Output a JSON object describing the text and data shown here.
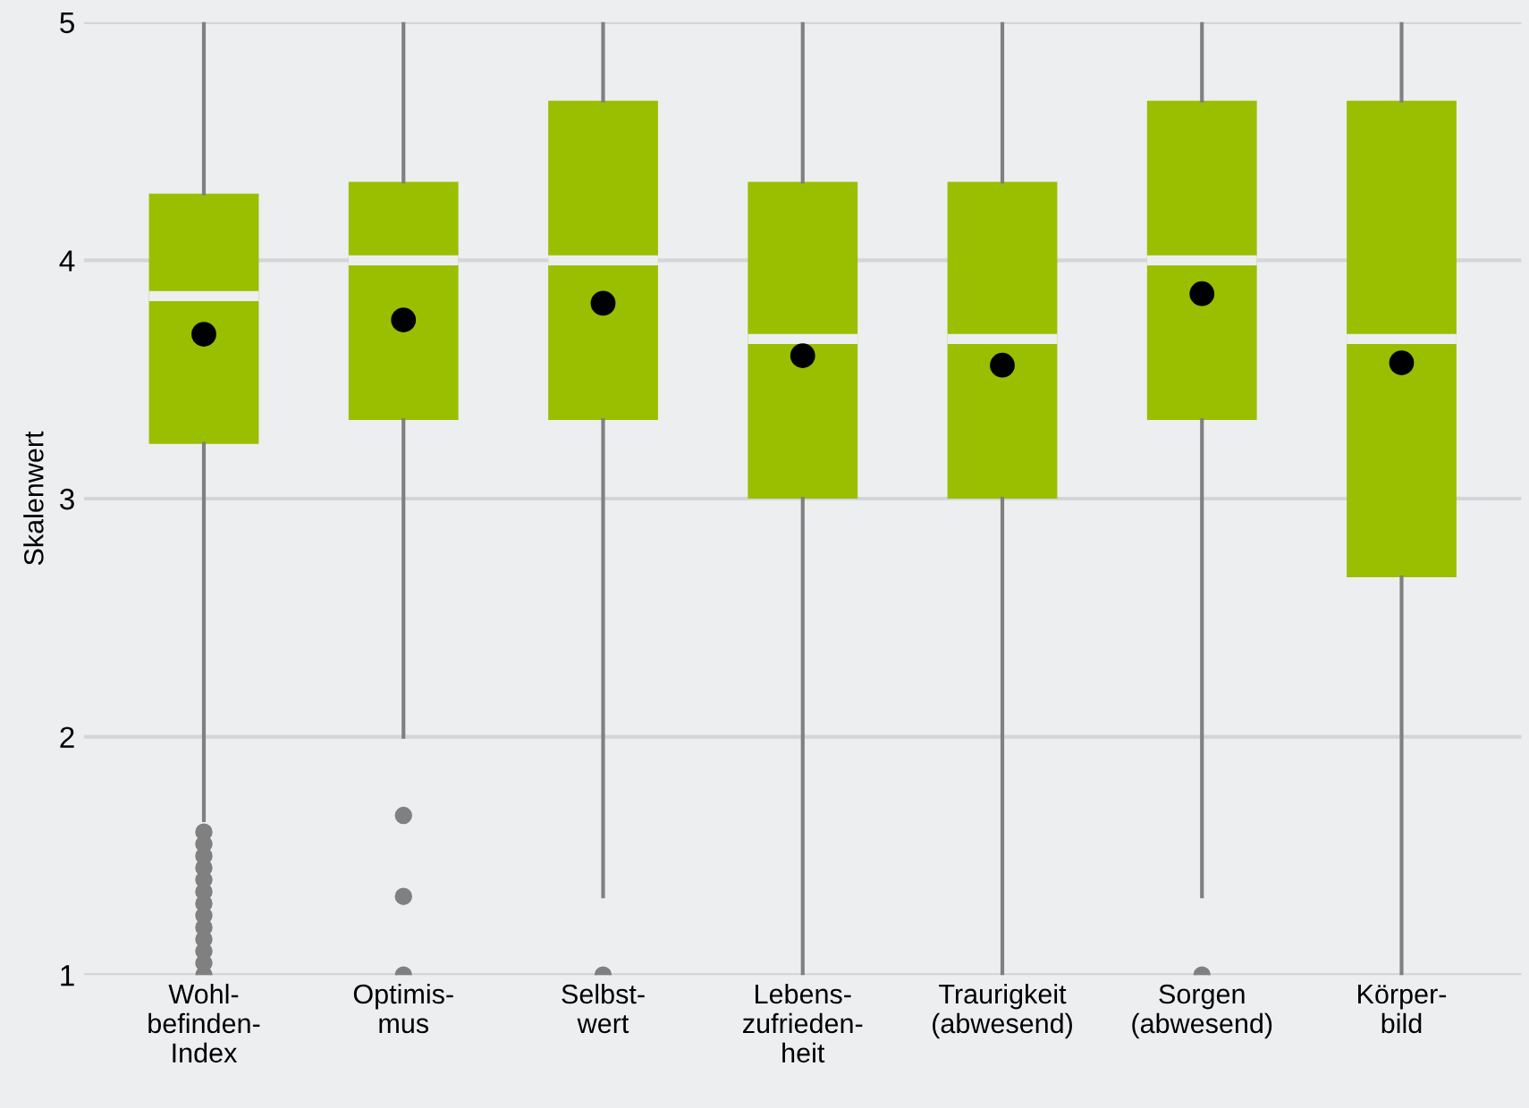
{
  "chart_data": {
    "type": "box",
    "ylabel": "Skalenwert",
    "categories": [
      "Wohl-\nbefinden-\nIndex",
      "Optimis-\nmus",
      "Selbst-\nwert",
      "Lebens-\nzufrieden-\nheit",
      "Traurigkeit\n(abwesend)",
      "Sorgen\n(abwesend)",
      "Körper-\nbild"
    ],
    "color": "#99bf00",
    "boxes": [
      {
        "low": 1.65,
        "q1": 3.23,
        "median": 3.85,
        "q3": 4.28,
        "high": 5,
        "mean": 3.69,
        "outliers": [
          1.0,
          1.05,
          1.1,
          1.15,
          1.2,
          1.25,
          1.3,
          1.35,
          1.4,
          1.45,
          1.5,
          1.55,
          1.6
        ]
      },
      {
        "low": 2.0,
        "q1": 3.33,
        "median": 4.0,
        "q3": 4.33,
        "high": 5,
        "mean": 3.75,
        "outliers": [
          1.0,
          1.33,
          1.67
        ]
      },
      {
        "low": 1.33,
        "q1": 3.33,
        "median": 4.0,
        "q3": 4.67,
        "high": 5,
        "mean": 3.82,
        "outliers": [
          1.0
        ]
      },
      {
        "low": 1.0,
        "q1": 3.0,
        "median": 3.67,
        "q3": 4.33,
        "high": 5,
        "mean": 3.6
      },
      {
        "low": 1.0,
        "q1": 3.0,
        "median": 3.67,
        "q3": 4.33,
        "high": 5,
        "mean": 3.56
      },
      {
        "low": 1.33,
        "q1": 3.33,
        "median": 4.0,
        "q3": 4.67,
        "high": 5,
        "mean": 3.86,
        "outliers": [
          1.0
        ]
      },
      {
        "low": 1.0,
        "q1": 2.67,
        "median": 3.67,
        "q3": 4.67,
        "high": 5,
        "mean": 3.57
      }
    ],
    "ylim": [
      1,
      5
    ],
    "yticks": [
      1,
      2,
      3,
      4,
      5
    ],
    "grid": "y"
  }
}
